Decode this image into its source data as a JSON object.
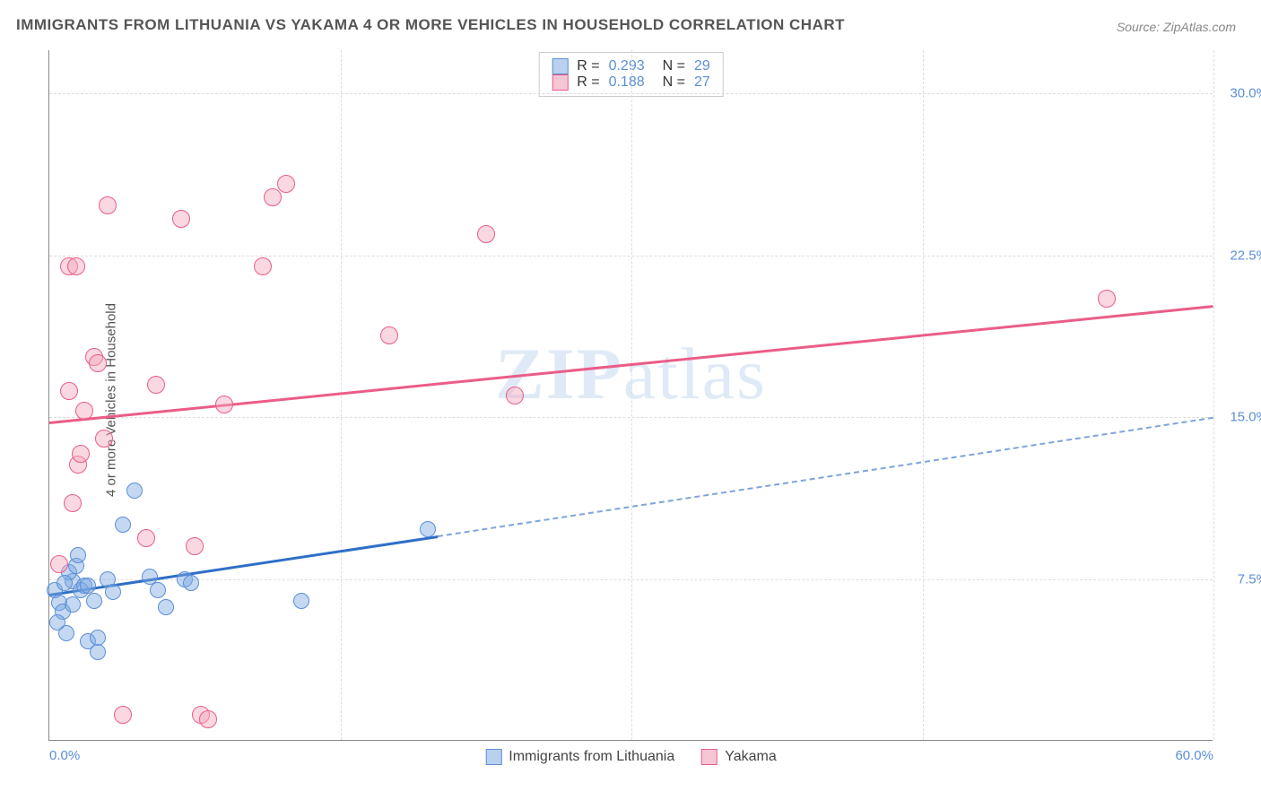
{
  "title": "IMMIGRANTS FROM LITHUANIA VS YAKAMA 4 OR MORE VEHICLES IN HOUSEHOLD CORRELATION CHART",
  "source": "Source: ZipAtlas.com",
  "ylabel": "4 or more Vehicles in Household",
  "watermark": "ZIPatlas",
  "chart": {
    "type": "scatter",
    "background_color": "#ffffff",
    "grid_color": "#dddddd",
    "axis_color": "#888888",
    "tick_label_color": "#5b8fd6",
    "xlim": [
      0,
      60
    ],
    "ylim": [
      0,
      32
    ],
    "xticks": [
      {
        "v": 0,
        "label": "0.0%"
      },
      {
        "v": 60,
        "label": "60.0%"
      }
    ],
    "xgrid": [
      15,
      30,
      45,
      60
    ],
    "yticks": [
      {
        "v": 7.5,
        "label": "7.5%"
      },
      {
        "v": 15.0,
        "label": "15.0%"
      },
      {
        "v": 22.5,
        "label": "22.5%"
      },
      {
        "v": 30.0,
        "label": "30.0%"
      }
    ],
    "series": [
      {
        "name": "Immigrants from Lithuania",
        "color_fill": "rgba(124,169,227,0.45)",
        "color_stroke": "#5b8fd6",
        "marker_radius": 9,
        "legend_swatch_fill": "#b9d0ee",
        "legend_swatch_stroke": "#5b8fd6",
        "R": "0.293",
        "N": "29",
        "trend": {
          "x1": 0,
          "y1": 6.8,
          "x2": 20,
          "y2": 9.5,
          "x2_ext": 60,
          "y2_ext": 15.0,
          "solid_color": "#2f6fc6",
          "dash_color": "#7ea5d9"
        },
        "points": [
          {
            "x": 0.3,
            "y": 7.0
          },
          {
            "x": 0.5,
            "y": 6.4
          },
          {
            "x": 0.7,
            "y": 6.0
          },
          {
            "x": 0.4,
            "y": 5.5
          },
          {
            "x": 0.9,
            "y": 5.0
          },
          {
            "x": 1.2,
            "y": 7.4
          },
          {
            "x": 1.6,
            "y": 7.0
          },
          {
            "x": 1.2,
            "y": 6.3
          },
          {
            "x": 1.0,
            "y": 7.8
          },
          {
            "x": 1.4,
            "y": 8.1
          },
          {
            "x": 1.8,
            "y": 7.2
          },
          {
            "x": 2.0,
            "y": 4.6
          },
          {
            "x": 2.0,
            "y": 7.2
          },
          {
            "x": 2.3,
            "y": 6.5
          },
          {
            "x": 2.5,
            "y": 4.1
          },
          {
            "x": 2.5,
            "y": 4.8
          },
          {
            "x": 3.0,
            "y": 7.5
          },
          {
            "x": 3.3,
            "y": 6.9
          },
          {
            "x": 3.8,
            "y": 10.0
          },
          {
            "x": 4.4,
            "y": 11.6
          },
          {
            "x": 5.2,
            "y": 7.6
          },
          {
            "x": 5.6,
            "y": 7.0
          },
          {
            "x": 6.0,
            "y": 6.2
          },
          {
            "x": 7.0,
            "y": 7.5
          },
          {
            "x": 7.3,
            "y": 7.3
          },
          {
            "x": 13.0,
            "y": 6.5
          },
          {
            "x": 19.5,
            "y": 9.8
          },
          {
            "x": 1.5,
            "y": 8.6
          },
          {
            "x": 0.8,
            "y": 7.3
          }
        ]
      },
      {
        "name": "Yakama",
        "color_fill": "rgba(243,168,188,0.45)",
        "color_stroke": "#ea5d87",
        "marker_radius": 10,
        "legend_swatch_fill": "#f6c6d4",
        "legend_swatch_stroke": "#ea5d87",
        "R": "0.188",
        "N": "27",
        "trend": {
          "x1": 0,
          "y1": 14.8,
          "x2": 60,
          "y2": 20.2,
          "x2_ext": 60,
          "y2_ext": 20.2,
          "solid_color": "#ea5d87",
          "dash_color": "#ea5d87"
        },
        "points": [
          {
            "x": 0.5,
            "y": 8.2
          },
          {
            "x": 1.0,
            "y": 16.2
          },
          {
            "x": 1.2,
            "y": 11.0
          },
          {
            "x": 1.5,
            "y": 12.8
          },
          {
            "x": 1.6,
            "y": 13.3
          },
          {
            "x": 1.8,
            "y": 15.3
          },
          {
            "x": 1.0,
            "y": 22.0
          },
          {
            "x": 1.4,
            "y": 22.0
          },
          {
            "x": 2.3,
            "y": 17.8
          },
          {
            "x": 2.5,
            "y": 17.5
          },
          {
            "x": 2.8,
            "y": 14.0
          },
          {
            "x": 3.0,
            "y": 24.8
          },
          {
            "x": 3.8,
            "y": 1.2
          },
          {
            "x": 5.0,
            "y": 9.4
          },
          {
            "x": 5.5,
            "y": 16.5
          },
          {
            "x": 6.8,
            "y": 24.2
          },
          {
            "x": 7.5,
            "y": 9.0
          },
          {
            "x": 7.8,
            "y": 1.2
          },
          {
            "x": 8.2,
            "y": 1.0
          },
          {
            "x": 9.0,
            "y": 15.6
          },
          {
            "x": 11.0,
            "y": 22.0
          },
          {
            "x": 11.5,
            "y": 25.2
          },
          {
            "x": 12.2,
            "y": 25.8
          },
          {
            "x": 17.5,
            "y": 18.8
          },
          {
            "x": 22.5,
            "y": 23.5
          },
          {
            "x": 24.0,
            "y": 16.0
          },
          {
            "x": 54.5,
            "y": 20.5
          }
        ]
      }
    ]
  },
  "bottom_legend": [
    {
      "label": "Immigrants from Lithuania",
      "fill": "#b9d0ee",
      "stroke": "#5b8fd6"
    },
    {
      "label": "Yakama",
      "fill": "#f6c6d4",
      "stroke": "#ea5d87"
    }
  ]
}
